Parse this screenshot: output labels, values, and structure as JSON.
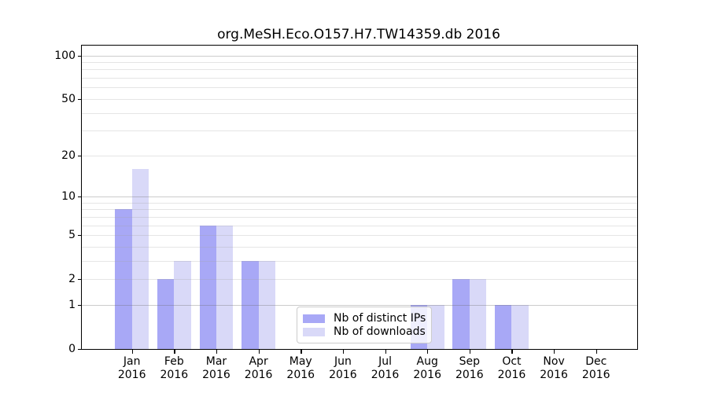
{
  "chart_data": {
    "type": "bar",
    "title": "org.MeSH.Eco.O157.H7.TW14359.db 2016",
    "months": [
      "Jan",
      "Feb",
      "Mar",
      "Apr",
      "May",
      "Jun",
      "Jul",
      "Aug",
      "Sep",
      "Oct",
      "Nov",
      "Dec"
    ],
    "year": "2016",
    "series": [
      {
        "name": "Nb of distinct IPs",
        "color": "#a8a8f6",
        "values": [
          8,
          2,
          6,
          3,
          0,
          0,
          0,
          1,
          2,
          1,
          0,
          0
        ]
      },
      {
        "name": "Nb of downloads",
        "color": "#d9d9f8",
        "values": [
          16,
          3,
          6,
          3,
          0,
          0,
          0,
          1,
          2,
          1,
          0,
          0
        ]
      }
    ],
    "yticks": [
      0,
      1,
      2,
      5,
      10,
      20,
      50,
      100
    ],
    "major_gridline_values": [
      1,
      10,
      100
    ],
    "minor_gridline_values": [
      2,
      3,
      4,
      5,
      6,
      7,
      8,
      9,
      20,
      30,
      40,
      50,
      60,
      70,
      80,
      90
    ],
    "scale": "log10(1+v)",
    "ylim": [
      0,
      118
    ],
    "grid": true,
    "legend": {
      "entries": [
        "Nb of distinct IPs",
        "Nb of downloads"
      ],
      "position": "lower-center"
    }
  }
}
